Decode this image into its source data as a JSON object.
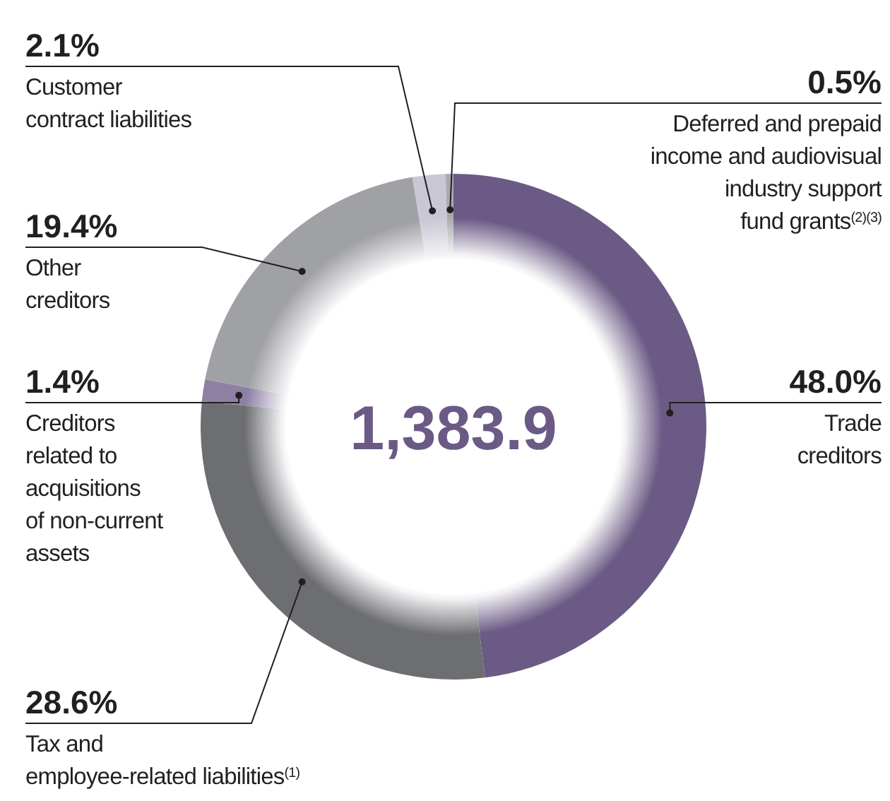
{
  "chart_data": {
    "type": "donut",
    "categories": [
      "Trade creditors",
      "Tax and employee-related liabilities$^{(1)}$",
      "Creditors related to acquisitions of non-current assets",
      "Other creditors",
      "Customer contract liabilities",
      "Deferred and prepaid income and audiovisual industry support fund grants$^{(2)(3)}$"
    ],
    "values": [
      48.0,
      28.6,
      1.4,
      19.4,
      2.1,
      0.5
    ],
    "value_labels": [
      "48.0%",
      "28.6%",
      "1.4%",
      "19.4%",
      "2.1%",
      "0.5%"
    ],
    "colors": [
      "#6b5a85",
      "#6d6e71",
      "#8e80a3",
      "#a0a1a5",
      "#c9c7d4",
      "#a9aaae"
    ],
    "annotations": [
      "1,383.9"
    ]
  }
}
